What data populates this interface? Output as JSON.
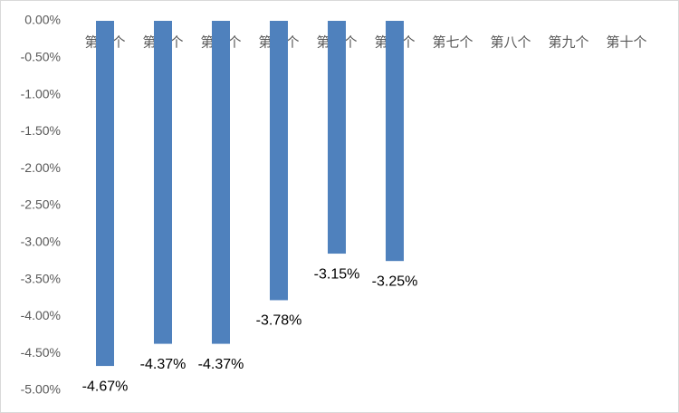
{
  "chart_data": {
    "type": "bar",
    "categories": [
      "第一个",
      "第二个",
      "第三个",
      "第四个",
      "第五个",
      "第六个",
      "第七个",
      "第八个",
      "第九个",
      "第十个"
    ],
    "values": [
      -4.67,
      -4.37,
      -4.37,
      -3.78,
      -3.15,
      -3.25,
      null,
      null,
      null,
      null
    ],
    "value_labels": [
      "-4.67%",
      "-4.37%",
      "-4.37%",
      "-3.78%",
      "-3.15%",
      "-3.25%",
      null,
      null,
      null,
      null
    ],
    "color": "#4f81bd",
    "ylim": [
      -5,
      0
    ],
    "yticks": [
      {
        "value": 0,
        "label": "0.00%"
      },
      {
        "value": -0.5,
        "label": "-0.50%"
      },
      {
        "value": -1,
        "label": "-1.00%"
      },
      {
        "value": -1.5,
        "label": "-1.50%"
      },
      {
        "value": -2,
        "label": "-2.00%"
      },
      {
        "value": -2.5,
        "label": "-2.50%"
      },
      {
        "value": -3,
        "label": "-3.00%"
      },
      {
        "value": -3.5,
        "label": "-3.50%"
      },
      {
        "value": -4,
        "label": "-4.00%"
      },
      {
        "value": -4.5,
        "label": "-4.50%"
      },
      {
        "value": -5,
        "label": "-5.00%"
      }
    ],
    "grid": false
  }
}
